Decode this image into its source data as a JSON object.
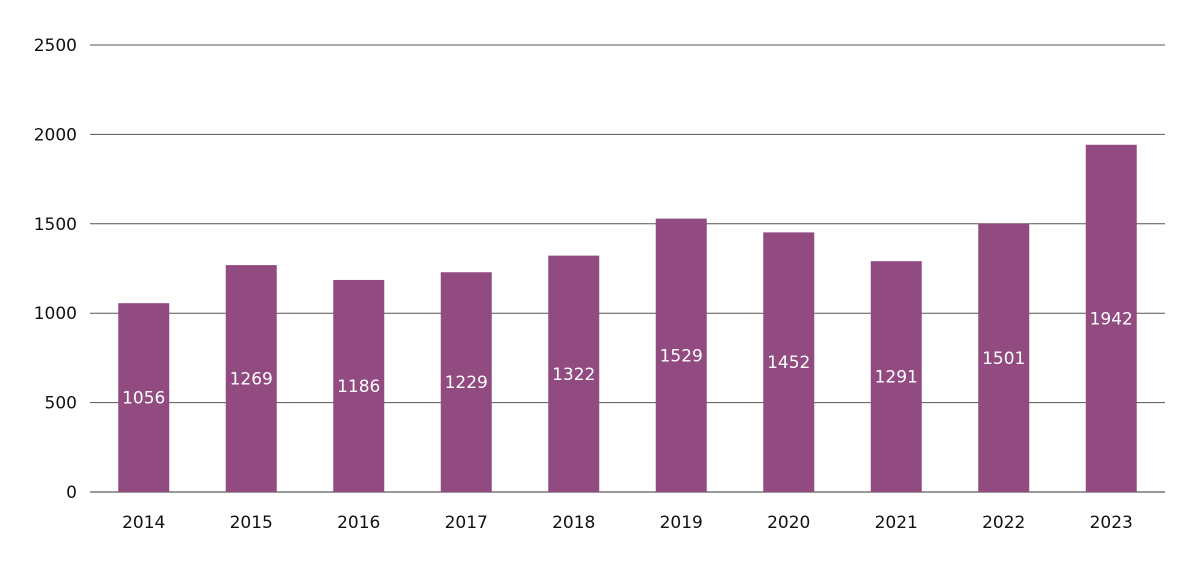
{
  "chart_data": {
    "type": "bar",
    "categories": [
      "2014",
      "2015",
      "2016",
      "2017",
      "2018",
      "2019",
      "2020",
      "2021",
      "2022",
      "2023"
    ],
    "values": [
      1056,
      1269,
      1186,
      1229,
      1322,
      1529,
      1452,
      1291,
      1501,
      1942
    ],
    "data_labels": [
      "1056",
      "1269",
      "1186",
      "1229",
      "1322",
      "1529",
      "1452",
      "1291",
      "1501",
      "1942"
    ],
    "title": "",
    "xlabel": "",
    "ylabel": "",
    "ylim": [
      0,
      2500
    ],
    "yticks": [
      "0",
      "500",
      "1000",
      "1500",
      "2000",
      "2500"
    ],
    "ytick_values": [
      0,
      500,
      1000,
      1500,
      2000,
      2500
    ],
    "grid": true,
    "legend": "none",
    "colors": {
      "bar": "#914b80",
      "label": "#ffffff",
      "grid": "#555555"
    }
  }
}
